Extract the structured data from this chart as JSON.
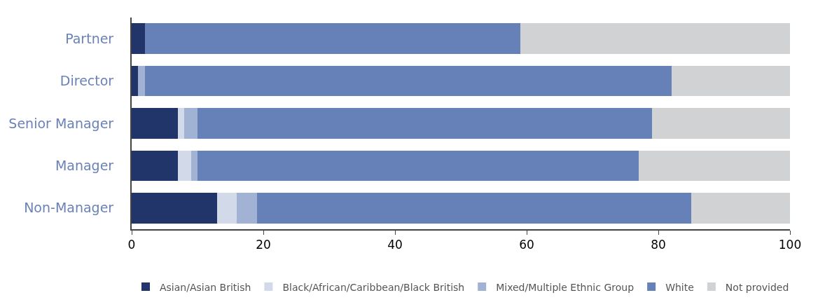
{
  "chart_data": {
    "type": "bar",
    "orientation": "horizontal",
    "stacked": true,
    "categories": [
      "Partner",
      "Director",
      "Senior Manager",
      "Manager",
      "Non-Manager"
    ],
    "series": [
      {
        "name": "Asian/Asian British",
        "color": "#21356a",
        "values": [
          2,
          1,
          7,
          7,
          13
        ]
      },
      {
        "name": "Black/African/Caribbean/Black British",
        "color": "#d2d9e8",
        "values": [
          0,
          0,
          1,
          2,
          3
        ]
      },
      {
        "name": "Mixed/Multiple Ethnic Group",
        "color": "#a2b2d4",
        "values": [
          0,
          1,
          2,
          1,
          3
        ]
      },
      {
        "name": "White",
        "color": "#6681b7",
        "values": [
          57,
          80,
          69,
          67,
          66
        ]
      },
      {
        "name": "Not provided",
        "color": "#d1d2d4",
        "values": [
          41,
          18,
          21,
          23,
          15
        ]
      }
    ],
    "xlim": [
      0,
      100
    ],
    "xticks": [
      0,
      20,
      40,
      60,
      80,
      100
    ],
    "legend": "bottom"
  }
}
